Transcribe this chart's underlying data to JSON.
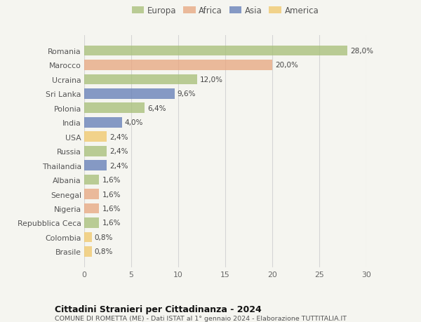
{
  "countries": [
    "Romania",
    "Marocco",
    "Ucraina",
    "Sri Lanka",
    "Polonia",
    "India",
    "USA",
    "Russia",
    "Thailandia",
    "Albania",
    "Senegal",
    "Nigeria",
    "Repubblica Ceca",
    "Colombia",
    "Brasile"
  ],
  "values": [
    28.0,
    20.0,
    12.0,
    9.6,
    6.4,
    4.0,
    2.4,
    2.4,
    2.4,
    1.6,
    1.6,
    1.6,
    1.6,
    0.8,
    0.8
  ],
  "labels": [
    "28,0%",
    "20,0%",
    "12,0%",
    "9,6%",
    "6,4%",
    "4,0%",
    "2,4%",
    "2,4%",
    "2,4%",
    "1,6%",
    "1,6%",
    "1,6%",
    "1,6%",
    "0,8%",
    "0,8%"
  ],
  "regions": [
    "Europa",
    "Africa",
    "Europa",
    "Asia",
    "Europa",
    "Asia",
    "America",
    "Europa",
    "Asia",
    "Europa",
    "Africa",
    "Africa",
    "Europa",
    "America",
    "America"
  ],
  "colors": {
    "Europa": "#a8c07a",
    "Africa": "#e8a882",
    "Asia": "#6680b8",
    "America": "#f0c96e"
  },
  "legend_order": [
    "Europa",
    "Africa",
    "Asia",
    "America"
  ],
  "title": "Cittadini Stranieri per Cittadinanza - 2024",
  "subtitle": "COMUNE DI ROMETTA (ME) - Dati ISTAT al 1° gennaio 2024 - Elaborazione TUTTITALIA.IT",
  "xlim": [
    0,
    30
  ],
  "xticks": [
    0,
    5,
    10,
    15,
    20,
    25,
    30
  ],
  "background_color": "#f5f5f0",
  "grid_color": "#d5d5d5",
  "bar_height": 0.72,
  "alpha": 0.78
}
